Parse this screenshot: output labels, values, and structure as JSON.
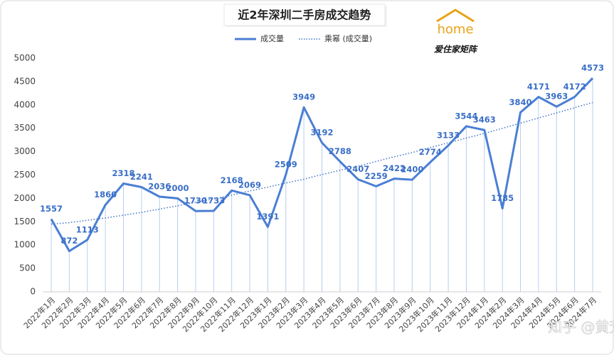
{
  "chart_data": {
    "type": "line",
    "title": "近2年深圳二手房成交趋势",
    "categories": [
      "2022年1月",
      "2022年2月",
      "2022年3月",
      "2022年4月",
      "2022年5月",
      "2022年6月",
      "2022年7月",
      "2022年8月",
      "2022年9月",
      "2022年10月",
      "2022年11月",
      "2022年12月",
      "2023年1月",
      "2023年2月",
      "2023年3月",
      "2023年4月",
      "2023年5月",
      "2023年6月",
      "2023年7月",
      "2023年8月",
      "2023年9月",
      "2023年10月",
      "2023年11月",
      "2023年12月",
      "2024年1月",
      "2024年2月",
      "2024年3月",
      "2024年4月",
      "2024年5月",
      "2024年6月",
      "2024年7月"
    ],
    "series": [
      {
        "name": "成交量",
        "color": "#4a7fd4",
        "values": [
          1557,
          872,
          1113,
          1860,
          2318,
          2241,
          2036,
          2000,
          1730,
          1733,
          2168,
          2069,
          1391,
          2509,
          3949,
          3192,
          2788,
          2407,
          2259,
          2422,
          2400,
          2774,
          3133,
          3544,
          3463,
          1785,
          3840,
          4171,
          3963,
          4172,
          4573
        ]
      },
      {
        "name": "乘幂 (成交量)",
        "color": "#3f73c6",
        "values": [
          1450,
          1480,
          1530,
          1580,
          1640,
          1700,
          1770,
          1840,
          1920,
          1990,
          2070,
          2160,
          2240,
          2330,
          2410,
          2510,
          2600,
          2690,
          2790,
          2890,
          2980,
          3090,
          3190,
          3290,
          3390,
          3500,
          3610,
          3720,
          3830,
          3940,
          4050
        ]
      }
    ],
    "ylim": [
      0,
      5000
    ],
    "yticks": [
      0,
      500,
      1000,
      1500,
      2000,
      2500,
      3000,
      3500,
      4000,
      4500,
      5000
    ],
    "grid": false
  },
  "logo": {
    "brand": "home",
    "tag": "爱住家矩阵"
  },
  "watermark": "知乎 @黄芳"
}
